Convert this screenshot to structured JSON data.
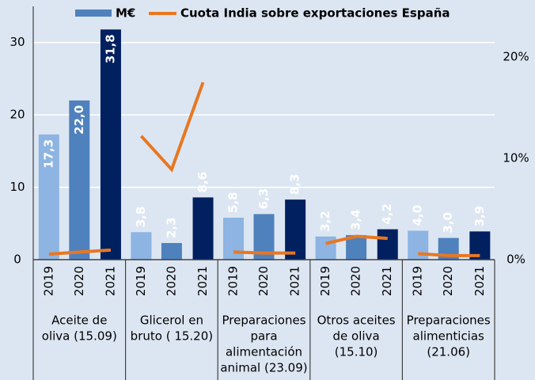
{
  "chart_data": {
    "type": "bar",
    "categories": [
      [
        "Aceite de",
        "oliva  (15.09)"
      ],
      [
        "Glicerol en",
        "bruto ( 15.20)"
      ],
      [
        "Preparaciones",
        "para",
        "alimentación",
        "animal  (23.09)"
      ],
      [
        "Otros aceites",
        "de oliva",
        "(15.10)"
      ],
      [
        "Preparaciones",
        "alimenticias",
        "(21.06)"
      ]
    ],
    "years": [
      "2019",
      "2020",
      "2021"
    ],
    "series": [
      {
        "name": "M€",
        "color": "#4f81bd",
        "year_colors": [
          "#8db4e2",
          "#4f81bd",
          "#002060"
        ],
        "values": [
          [
            17.3,
            22.0,
            31.8
          ],
          [
            3.8,
            2.3,
            8.6
          ],
          [
            5.8,
            6.3,
            8.3
          ],
          [
            3.2,
            3.4,
            4.2
          ],
          [
            4.0,
            3.0,
            3.9
          ]
        ],
        "value_labels": [
          [
            "17,3",
            "22,0",
            "31,8"
          ],
          [
            "3,8",
            "2,3",
            "8,6"
          ],
          [
            "5,8",
            "6,3",
            "8,3"
          ],
          [
            "3,2",
            "3,4",
            "4,2"
          ],
          [
            "4,0",
            "3,0",
            "3,9"
          ]
        ]
      },
      {
        "name": "Cuota India sobre exportaciones España",
        "color": "#e87722",
        "axis": "y2",
        "values": [
          [
            0.55,
            0.75,
            0.95
          ],
          [
            12.2,
            8.9,
            17.5
          ],
          [
            0.75,
            0.65,
            0.65
          ],
          [
            1.6,
            2.3,
            2.1
          ],
          [
            0.6,
            0.4,
            0.4
          ]
        ]
      }
    ],
    "ylim": [
      0,
      35
    ],
    "yticks": [
      0,
      10,
      20,
      30
    ],
    "y2lim": [
      0,
      25
    ],
    "y2ticks": [
      {
        "value": 0,
        "label": "0%"
      },
      {
        "value": 10,
        "label": "10%"
      },
      {
        "value": 20,
        "label": "20%"
      }
    ],
    "grid": true
  }
}
